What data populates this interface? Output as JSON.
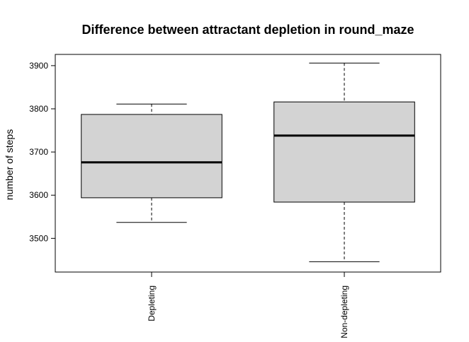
{
  "chart_data": {
    "type": "box",
    "title": "Difference between attractant depletion in round_maze",
    "xlabel": "",
    "ylabel": "number of steps",
    "categories": [
      "Depleting",
      "Non-depleting"
    ],
    "yticks": [
      3500,
      3600,
      3700,
      3800,
      3900
    ],
    "ylim": [
      3422,
      3926
    ],
    "boxes": [
      {
        "label": "Depleting",
        "whisker_low": 3537,
        "q1": 3594,
        "median": 3676,
        "q3": 3787,
        "whisker_high": 3811
      },
      {
        "label": "Non-depleting",
        "whisker_low": 3446,
        "q1": 3584,
        "median": 3738,
        "q3": 3816,
        "whisker_high": 3906
      }
    ],
    "grid": false,
    "legend": "none",
    "box_fill": "#d3d3d3",
    "line_color": "#000000"
  }
}
